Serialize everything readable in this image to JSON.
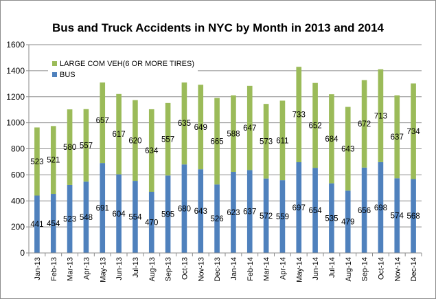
{
  "chart_data": {
    "type": "bar",
    "stacked": true,
    "title": "Bus and Truck Accidents in NYC by Month in 2013 and 2014",
    "categories": [
      "Jan-13",
      "Feb-13",
      "Mar-13",
      "Apr-13",
      "May-13",
      "Jun-13",
      "Jul-13",
      "Aug-13",
      "Sep-13",
      "Oct-13",
      "Nov-13",
      "Dec-13",
      "Jan-14",
      "Feb-14",
      "Mar-14",
      "Apr-14",
      "May-14",
      "Jun-14",
      "Jul-14",
      "Aug-14",
      "Sep-14",
      "Oct-14",
      "Nov-14",
      "Dec-14"
    ],
    "series": [
      {
        "name": "BUS",
        "color": "#4f81bd",
        "values": [
          441,
          454,
          523,
          548,
          691,
          604,
          554,
          470,
          595,
          680,
          643,
          526,
          623,
          637,
          572,
          559,
          697,
          654,
          535,
          479,
          656,
          698,
          574,
          568
        ]
      },
      {
        "name": "LARGE COM VEH(6 OR MORE TIRES)",
        "color": "#9bbb59",
        "values": [
          523,
          521,
          580,
          557,
          657,
          617,
          620,
          634,
          557,
          635,
          649,
          665,
          588,
          647,
          573,
          611,
          733,
          652,
          684,
          643,
          672,
          713,
          637,
          734
        ]
      }
    ],
    "legend_order": [
      "LARGE COM VEH(6 OR MORE TIRES)",
      "BUS"
    ],
    "legend_position": "top-left",
    "ylim": [
      0,
      1600
    ],
    "yticks": [
      "0",
      "200",
      "400",
      "600",
      "800",
      "1000",
      "1200",
      "1400",
      "1600"
    ],
    "grid": true,
    "xlabel": "",
    "ylabel": ""
  }
}
